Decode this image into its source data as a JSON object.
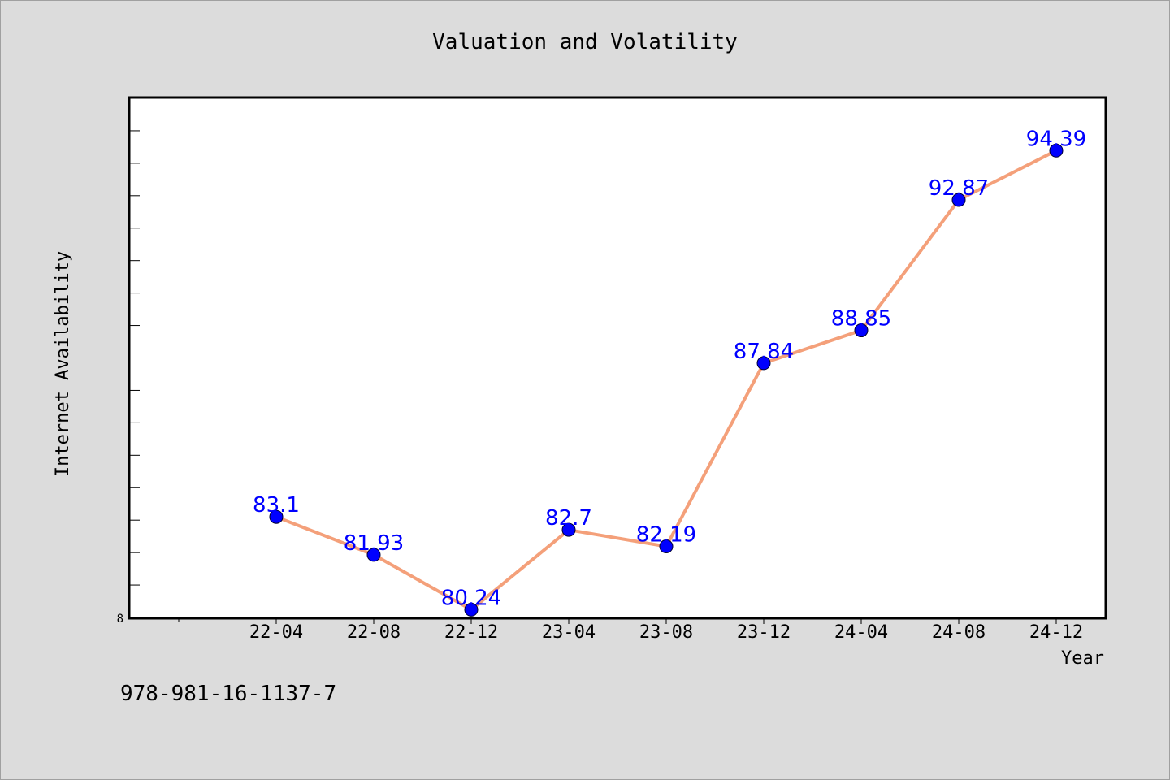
{
  "chart_data": {
    "type": "line",
    "title": "Valuation and Volatility",
    "xlabel": "Year",
    "ylabel": "Internet Availability",
    "x": [
      "22-04",
      "22-08",
      "22-12",
      "23-04",
      "23-08",
      "23-12",
      "24-04",
      "24-08",
      "24-12"
    ],
    "series": [
      {
        "values": [
          83.1,
          81.93,
          80.24,
          82.7,
          82.19,
          87.84,
          88.85,
          92.87,
          94.39
        ]
      }
    ],
    "y_tick_label": "8",
    "ylim": [
      80,
      96
    ],
    "grid": false,
    "legend": "none",
    "line_color": "#f4a07a",
    "marker_color": "#0000ff",
    "label_color": "#0000ff"
  },
  "footer": {
    "isbn": "978-981-16-1137-7"
  },
  "colors": {
    "background": "#dcdcdc",
    "plot_background": "#ffffff"
  }
}
